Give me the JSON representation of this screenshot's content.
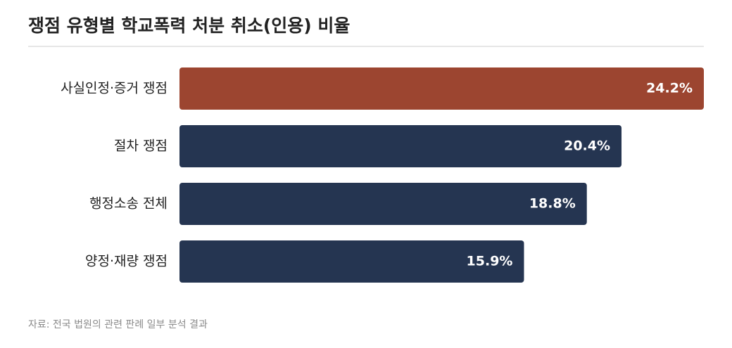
{
  "chart_data": {
    "type": "bar",
    "orientation": "horizontal",
    "title": "쟁점 유형별 학교폭력 처분 취소(인용) 비율",
    "categories": [
      "사실인정·증거 쟁점",
      "절차 쟁점",
      "행정소송 전체",
      "양정·재량 쟁점"
    ],
    "values": [
      24.2,
      20.4,
      18.8,
      15.9
    ],
    "value_labels": [
      "24.2%",
      "20.4%",
      "18.8%",
      "15.9%"
    ],
    "colors": [
      "#9c4530",
      "#253551",
      "#253551",
      "#253551"
    ],
    "source": "자료: 전국 법원의 관련 판례 일부 분석 결과"
  }
}
